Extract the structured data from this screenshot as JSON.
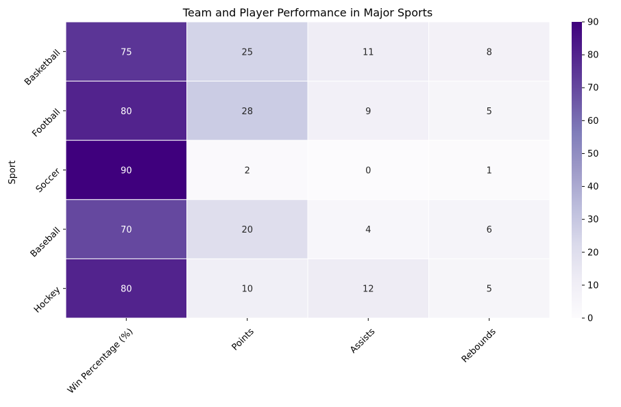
{
  "chart_data": {
    "type": "heatmap",
    "title": "Team and Player Performance in Major Sports",
    "xlabel": "",
    "ylabel": "Sport",
    "rows": [
      "Basketball",
      "Football",
      "Soccer",
      "Baseball",
      "Hockey"
    ],
    "columns": [
      "Win Percentage (%)",
      "Points",
      "Assists",
      "Rebounds"
    ],
    "values": [
      [
        75,
        25,
        11,
        8
      ],
      [
        80,
        28,
        9,
        5
      ],
      [
        90,
        2,
        0,
        1
      ],
      [
        70,
        20,
        4,
        6
      ],
      [
        80,
        10,
        12,
        5
      ]
    ],
    "colorbar": {
      "min": 0,
      "max": 90,
      "ticks": [
        0,
        10,
        20,
        30,
        40,
        50,
        60,
        70,
        80,
        90
      ]
    },
    "colormap": "Purples",
    "colors": {
      "low": "#fcfbfd",
      "high": "#3f007d"
    },
    "annotate": true,
    "cell_border": "#ffffff"
  }
}
